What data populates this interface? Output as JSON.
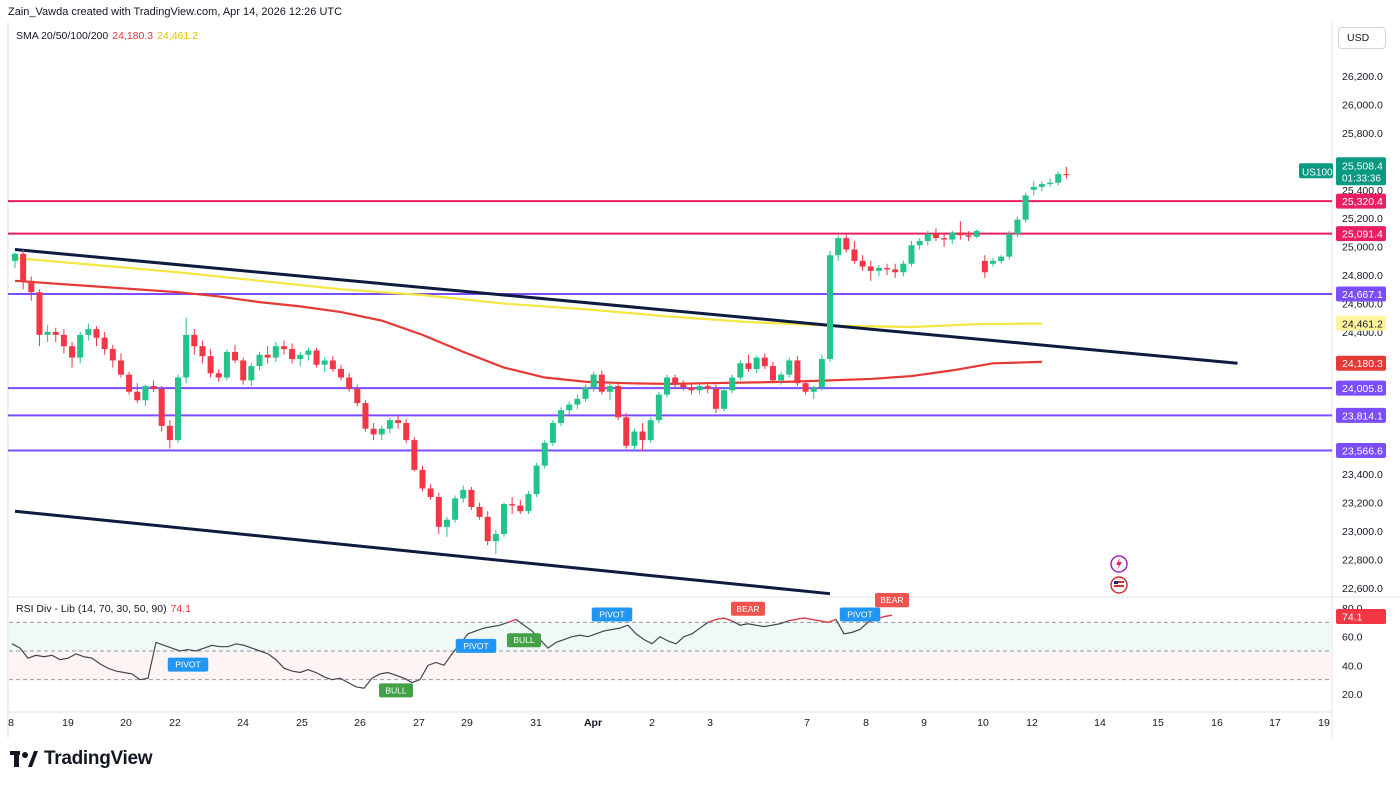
{
  "header": {
    "credit": "Zain_Vawda created with TradingView.com, Apr 14, 2026 12:26 UTC",
    "currency_button": "USD"
  },
  "sma_legend": {
    "label": "SMA 20/50/100/200",
    "value_red": "24,180.3",
    "value_yellow": "24,461.2"
  },
  "rsi_legend": {
    "label": "RSI Div - Lib (14, 70, 30, 50, 90)",
    "value": "74.1"
  },
  "footer": {
    "brand": "TradingView"
  },
  "colors": {
    "bull": "#22c48a",
    "bear": "#f23645",
    "resistance": "#e91e63",
    "support": "#7c4dff",
    "channel": "#0d1b3e",
    "sma_yellow": "#f5e642",
    "sma_red": "#e53935",
    "rsi_line": "#434651"
  },
  "chart_data": {
    "type": "candlestick",
    "symbol": "US100",
    "last_price": "25,508.4",
    "countdown": "01:33:36",
    "price_axis": {
      "range": [
        22600,
        26300
      ],
      "ticks": [
        "26,200.0",
        "26,000.0",
        "25,800.0",
        "25,600.0",
        "25,400.0",
        "25,200.0",
        "25,000.0",
        "24,800.0",
        "24,600.0",
        "24,400.0",
        "24,200.0",
        "24,000.0",
        "23,800.0",
        "23,600.0",
        "23,400.0",
        "23,200.0",
        "23,000.0",
        "22,800.0",
        "22,600.0"
      ]
    },
    "time_axis": {
      "ticks": [
        "8",
        "19",
        "20",
        "22",
        "24",
        "25",
        "26",
        "27",
        "29",
        "31",
        "Apr",
        "2",
        "3",
        "7",
        "8",
        "9",
        "10",
        "12",
        "14",
        "15",
        "16",
        "17",
        "19"
      ]
    },
    "horizontal_levels": [
      {
        "price": 25320.4,
        "label": "25,320.4",
        "kind": "resistance"
      },
      {
        "price": 25091.4,
        "label": "25,091.4",
        "kind": "resistance"
      },
      {
        "price": 24667.1,
        "label": "24,667.1",
        "kind": "support"
      },
      {
        "price": 24005.8,
        "label": "24,005.8",
        "kind": "support"
      },
      {
        "price": 23814.1,
        "label": "23,814.1",
        "kind": "support"
      },
      {
        "price": 23566.6,
        "label": "23,566.6",
        "kind": "support"
      }
    ],
    "sma_badges": [
      {
        "price": 24461.2,
        "label": "24,461.2",
        "kind": "sma_yellow"
      },
      {
        "price": 24180.3,
        "label": "24,180.3",
        "kind": "sma_red"
      }
    ],
    "sma_yellow": [
      [
        0,
        24920
      ],
      [
        10,
        24870
      ],
      [
        20,
        24820
      ],
      [
        30,
        24760
      ],
      [
        40,
        24700
      ],
      [
        50,
        24660
      ],
      [
        60,
        24600
      ],
      [
        70,
        24560
      ],
      [
        80,
        24510
      ],
      [
        90,
        24470
      ],
      [
        100,
        24445
      ],
      [
        110,
        24435
      ],
      [
        118,
        24455
      ],
      [
        126,
        24460
      ]
    ],
    "sma_red": [
      [
        0,
        24760
      ],
      [
        10,
        24720
      ],
      [
        20,
        24680
      ],
      [
        25,
        24650
      ],
      [
        30,
        24610
      ],
      [
        35,
        24580
      ],
      [
        40,
        24540
      ],
      [
        45,
        24480
      ],
      [
        50,
        24380
      ],
      [
        55,
        24260
      ],
      [
        60,
        24150
      ],
      [
        65,
        24080
      ],
      [
        70,
        24050
      ],
      [
        75,
        24040
      ],
      [
        80,
        24035
      ],
      [
        85,
        24040
      ],
      [
        90,
        24045
      ],
      [
        95,
        24050
      ],
      [
        100,
        24060
      ],
      [
        105,
        24070
      ],
      [
        110,
        24090
      ],
      [
        115,
        24130
      ],
      [
        120,
        24180
      ],
      [
        126,
        24190
      ]
    ],
    "channel_lines": [
      {
        "from": [
          0,
          24980
        ],
        "to": [
          150,
          24180
        ]
      },
      {
        "from": [
          0,
          23140
        ],
        "to": [
          100,
          22560
        ]
      }
    ],
    "candles": [
      [
        24900,
        24960,
        24850,
        24950
      ],
      [
        24950,
        24980,
        24700,
        24760
      ],
      [
        24760,
        24790,
        24620,
        24680
      ],
      [
        24680,
        24700,
        24300,
        24380
      ],
      [
        24380,
        24450,
        24330,
        24400
      ],
      [
        24400,
        24430,
        24330,
        24380
      ],
      [
        24380,
        24420,
        24250,
        24300
      ],
      [
        24300,
        24330,
        24150,
        24220
      ],
      [
        24220,
        24400,
        24180,
        24380
      ],
      [
        24380,
        24460,
        24340,
        24420
      ],
      [
        24420,
        24440,
        24300,
        24360
      ],
      [
        24360,
        24400,
        24240,
        24280
      ],
      [
        24280,
        24310,
        24150,
        24200
      ],
      [
        24200,
        24250,
        24080,
        24100
      ],
      [
        24100,
        24120,
        23960,
        23980
      ],
      [
        23980,
        24040,
        23900,
        23920
      ],
      [
        23920,
        24030,
        23880,
        24020
      ],
      [
        24020,
        24060,
        23980,
        24000
      ],
      [
        24000,
        24020,
        23700,
        23740
      ],
      [
        23740,
        23780,
        23580,
        23640
      ],
      [
        23640,
        24100,
        23620,
        24080
      ],
      [
        24080,
        24500,
        24040,
        24380
      ],
      [
        24380,
        24420,
        24240,
        24300
      ],
      [
        24300,
        24340,
        24180,
        24230
      ],
      [
        24230,
        24280,
        24080,
        24110
      ],
      [
        24110,
        24140,
        24050,
        24080
      ],
      [
        24080,
        24280,
        24060,
        24260
      ],
      [
        24260,
        24310,
        24180,
        24200
      ],
      [
        24200,
        24220,
        24030,
        24060
      ],
      [
        24060,
        24180,
        24020,
        24160
      ],
      [
        24160,
        24260,
        24130,
        24240
      ],
      [
        24240,
        24300,
        24180,
        24220
      ],
      [
        24220,
        24330,
        24190,
        24300
      ],
      [
        24300,
        24340,
        24240,
        24280
      ],
      [
        24280,
        24320,
        24180,
        24210
      ],
      [
        24210,
        24260,
        24160,
        24240
      ],
      [
        24240,
        24290,
        24200,
        24270
      ],
      [
        24270,
        24290,
        24150,
        24170
      ],
      [
        24170,
        24220,
        24120,
        24200
      ],
      [
        24200,
        24230,
        24120,
        24140
      ],
      [
        24140,
        24170,
        24060,
        24080
      ],
      [
        24080,
        24110,
        23980,
        24000
      ],
      [
        24000,
        24030,
        23880,
        23900
      ],
      [
        23900,
        23920,
        23700,
        23720
      ],
      [
        23720,
        23760,
        23640,
        23680
      ],
      [
        23680,
        23740,
        23640,
        23720
      ],
      [
        23720,
        23800,
        23690,
        23780
      ],
      [
        23780,
        23810,
        23720,
        23760
      ],
      [
        23760,
        23790,
        23620,
        23640
      ],
      [
        23640,
        23660,
        23420,
        23430
      ],
      [
        23430,
        23460,
        23280,
        23300
      ],
      [
        23300,
        23330,
        23220,
        23240
      ],
      [
        23240,
        23270,
        22980,
        23030
      ],
      [
        23030,
        23100,
        22960,
        23080
      ],
      [
        23080,
        23250,
        23060,
        23230
      ],
      [
        23230,
        23320,
        23200,
        23290
      ],
      [
        23290,
        23310,
        23150,
        23170
      ],
      [
        23170,
        23200,
        23080,
        23100
      ],
      [
        23100,
        23140,
        22900,
        22930
      ],
      [
        22930,
        23010,
        22840,
        22980
      ],
      [
        22980,
        23200,
        22960,
        23190
      ],
      [
        23190,
        23240,
        23120,
        23180
      ],
      [
        23180,
        23220,
        23120,
        23140
      ],
      [
        23140,
        23280,
        23120,
        23260
      ],
      [
        23260,
        23480,
        23240,
        23460
      ],
      [
        23460,
        23640,
        23440,
        23620
      ],
      [
        23620,
        23780,
        23600,
        23760
      ],
      [
        23760,
        23870,
        23740,
        23850
      ],
      [
        23850,
        23910,
        23820,
        23890
      ],
      [
        23890,
        23960,
        23860,
        23930
      ],
      [
        23930,
        24030,
        23910,
        24010
      ],
      [
        24010,
        24120,
        23980,
        24100
      ],
      [
        24100,
        24130,
        23960,
        23980
      ],
      [
        23980,
        24040,
        23920,
        24020
      ],
      [
        24020,
        24050,
        23780,
        23800
      ],
      [
        23800,
        23830,
        23580,
        23600
      ],
      [
        23600,
        23720,
        23570,
        23700
      ],
      [
        23700,
        23760,
        23560,
        23640
      ],
      [
        23640,
        23800,
        23620,
        23780
      ],
      [
        23780,
        23980,
        23760,
        23960
      ],
      [
        23960,
        24100,
        23940,
        24080
      ],
      [
        24080,
        24100,
        24000,
        24030
      ],
      [
        24030,
        24060,
        23990,
        24010
      ],
      [
        24010,
        24040,
        23960,
        23990
      ],
      [
        23990,
        24040,
        23960,
        24020
      ],
      [
        24020,
        24050,
        23970,
        24000
      ],
      [
        24000,
        24030,
        23830,
        23860
      ],
      [
        23860,
        24010,
        23840,
        23990
      ],
      [
        23990,
        24100,
        23970,
        24080
      ],
      [
        24080,
        24200,
        24060,
        24180
      ],
      [
        24180,
        24240,
        24120,
        24140
      ],
      [
        24140,
        24230,
        24110,
        24220
      ],
      [
        24220,
        24250,
        24140,
        24160
      ],
      [
        24160,
        24190,
        24040,
        24060
      ],
      [
        24060,
        24120,
        24030,
        24100
      ],
      [
        24100,
        24220,
        24080,
        24200
      ],
      [
        24200,
        24230,
        24020,
        24040
      ],
      [
        24040,
        24060,
        23960,
        23980
      ],
      [
        23980,
        24020,
        23930,
        24010
      ],
      [
        24010,
        24240,
        23990,
        24210
      ],
      [
        24210,
        24970,
        24190,
        24940
      ],
      [
        24940,
        25080,
        24900,
        25060
      ],
      [
        25060,
        25090,
        24960,
        24980
      ],
      [
        24980,
        25040,
        24880,
        24900
      ],
      [
        24900,
        24940,
        24830,
        24860
      ],
      [
        24860,
        24900,
        24760,
        24830
      ],
      [
        24830,
        24870,
        24790,
        24850
      ],
      [
        24850,
        24880,
        24800,
        24840
      ],
      [
        24840,
        24880,
        24780,
        24820
      ],
      [
        24820,
        24900,
        24790,
        24880
      ],
      [
        24880,
        25040,
        24860,
        25010
      ],
      [
        25010,
        25060,
        24980,
        25040
      ],
      [
        25040,
        25110,
        25010,
        25090
      ],
      [
        25090,
        25130,
        25040,
        25060
      ],
      [
        25060,
        25090,
        25000,
        25050
      ],
      [
        25050,
        25110,
        25020,
        25100
      ],
      [
        25100,
        25180,
        25050,
        25080
      ],
      [
        25080,
        25110,
        25040,
        25070
      ],
      [
        25070,
        25120,
        25060,
        25110
      ],
      [
        24900,
        24940,
        24780,
        24820
      ],
      [
        24880,
        24920,
        24860,
        24900
      ],
      [
        24900,
        24940,
        24880,
        24930
      ],
      [
        24930,
        25110,
        24910,
        25090
      ],
      [
        25090,
        25210,
        25070,
        25190
      ],
      [
        25190,
        25380,
        25170,
        25360
      ],
      [
        25400,
        25460,
        25360,
        25420
      ],
      [
        25420,
        25460,
        25390,
        25440
      ],
      [
        25440,
        25480,
        25420,
        25450
      ],
      [
        25450,
        25530,
        25430,
        25510
      ],
      [
        25510,
        25560,
        25480,
        25508
      ]
    ],
    "rsi": {
      "range": [
        10,
        90
      ],
      "levels": [
        70,
        50,
        30
      ],
      "axis_ticks": [
        "80.0",
        "60.0",
        "40.0",
        "20.0"
      ],
      "values": [
        55,
        52,
        45,
        47,
        46,
        47,
        44,
        45,
        48,
        46,
        45,
        41,
        38,
        36,
        35,
        34,
        30,
        31,
        56,
        54,
        52,
        50,
        51,
        50,
        52,
        54,
        53,
        53,
        55,
        54,
        52,
        50,
        48,
        44,
        38,
        36,
        35,
        37,
        35,
        32,
        30,
        31,
        28,
        25,
        24,
        31,
        34,
        35,
        33,
        31,
        28,
        30,
        40,
        42,
        40,
        48,
        55,
        62,
        64,
        66,
        67,
        68,
        70,
        72,
        68,
        64,
        58,
        52,
        56,
        58,
        60,
        61,
        60,
        62,
        64,
        65,
        66,
        68,
        62,
        58,
        55,
        60,
        57,
        55,
        60,
        62,
        66,
        70,
        72,
        73,
        71,
        68,
        69,
        68,
        67,
        68,
        69,
        71,
        72,
        73,
        72,
        71,
        70,
        72,
        62,
        63,
        65,
        70,
        72,
        74,
        75
      ],
      "labels": [
        {
          "text": "PIVOT",
          "idx": 22,
          "pos": "below",
          "color": "#2196f3"
        },
        {
          "text": "BULL",
          "idx": 48,
          "pos": "below",
          "color": "#43a047"
        },
        {
          "text": "PIVOT",
          "idx": 58,
          "pos": "below",
          "color": "#2196f3"
        },
        {
          "text": "BULL",
          "idx": 64,
          "pos": "below",
          "color": "#43a047"
        },
        {
          "text": "PIVOT",
          "idx": 75,
          "pos": "above",
          "color": "#2196f3"
        },
        {
          "text": "BEAR",
          "idx": 92,
          "pos": "above",
          "color": "#ef5350"
        },
        {
          "text": "PIVOT",
          "idx": 106,
          "pos": "above",
          "color": "#2196f3"
        },
        {
          "text": "BEAR",
          "idx": 117,
          "pos": "above",
          "color": "#ef5350"
        },
        {
          "text": "BEAR",
          "idx": 120,
          "pos": "above",
          "color": "#ef5350"
        },
        {
          "text": "BEAR",
          "idx": 133,
          "pos": "above",
          "color": "#ef5350"
        }
      ]
    }
  }
}
